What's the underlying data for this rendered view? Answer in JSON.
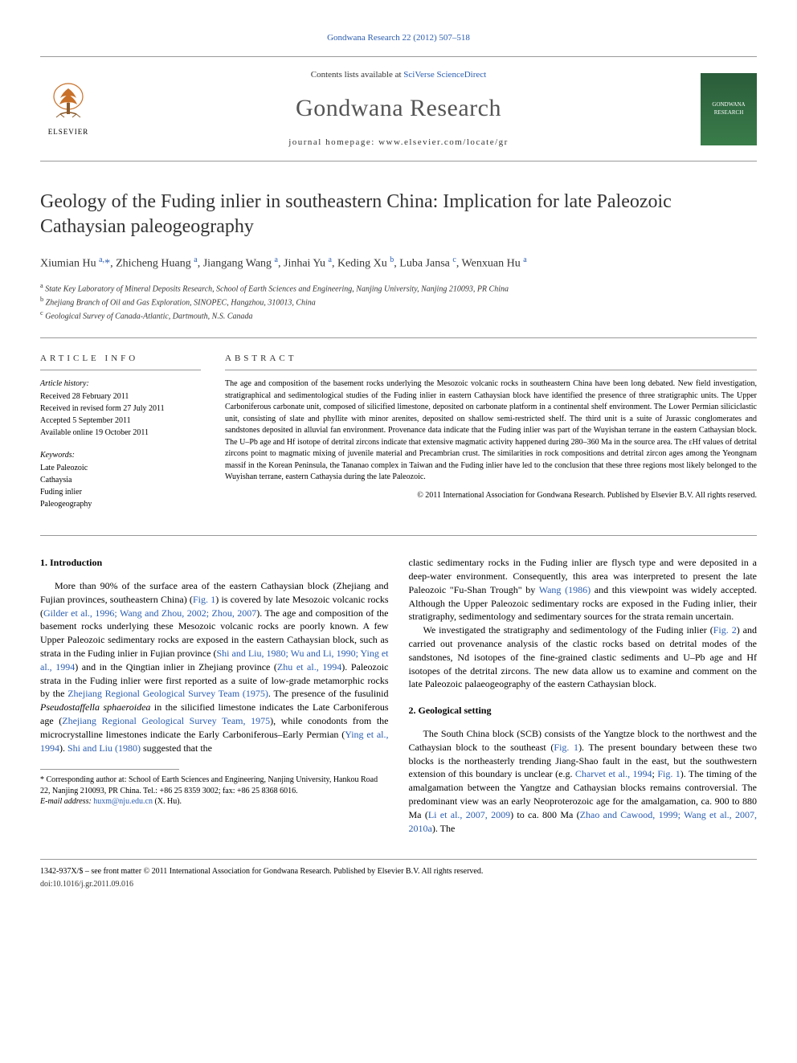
{
  "top_link": "Gondwana Research 22 (2012) 507–518",
  "journal_header": {
    "contents_prefix": "Contents lists available at ",
    "contents_link": "SciVerse ScienceDirect",
    "journal_name": "Gondwana Research",
    "homepage": "journal homepage: www.elsevier.com/locate/gr",
    "elsevier_label": "ELSEVIER",
    "cover_text": "GONDWANA RESEARCH"
  },
  "title": "Geology of the Fuding inlier in southeastern China: Implication for late Paleozoic Cathaysian paleogeography",
  "authors_html": "Xiumian Hu <sup>a,</sup><span class='star'>*</span>, Zhicheng Huang <sup>a</sup>, Jiangang Wang <sup>a</sup>, Jinhai Yu <sup>a</sup>, Keding Xu <sup>b</sup>, Luba Jansa <sup>c</sup>, Wenxuan Hu <sup>a</sup>",
  "affiliations": [
    {
      "sup": "a",
      "text": "State Key Laboratory of Mineral Deposits Research, School of Earth Sciences and Engineering, Nanjing University, Nanjing 210093, PR China"
    },
    {
      "sup": "b",
      "text": "Zhejiang Branch of Oil and Gas Exploration, SINOPEC, Hangzhou, 310013, China"
    },
    {
      "sup": "c",
      "text": "Geological Survey of Canada-Atlantic, Dartmouth, N.S. Canada"
    }
  ],
  "info": {
    "heading": "ARTICLE INFO",
    "history_label": "Article history:",
    "history": [
      "Received 28 February 2011",
      "Received in revised form 27 July 2011",
      "Accepted 5 September 2011",
      "Available online 19 October 2011"
    ],
    "keywords_label": "Keywords:",
    "keywords": [
      "Late Paleozoic",
      "Cathaysia",
      "Fuding inlier",
      "Paleogeography"
    ]
  },
  "abstract": {
    "heading": "ABSTRACT",
    "text": "The age and composition of the basement rocks underlying the Mesozoic volcanic rocks in southeastern China have been long debated. New field investigation, stratigraphical and sedimentological studies of the Fuding inlier in eastern Cathaysian block have identified the presence of three stratigraphic units. The Upper Carboniferous carbonate unit, composed of silicified limestone, deposited on carbonate platform in a continental shelf environment. The Lower Permian siliciclastic unit, consisting of slate and phyllite with minor arenites, deposited on shallow semi-restricted shelf. The third unit is a suite of Jurassic conglomerates and sandstones deposited in alluvial fan environment. Provenance data indicate that the Fuding inlier was part of the Wuyishan terrane in the eastern Cathaysian block. The U–Pb age and Hf isotope of detrital zircons indicate that extensive magmatic activity happened during 280–360 Ma in the source area. The εHf values of detrital zircons point to magmatic mixing of juvenile material and Precambrian crust. The similarities in rock compositions and detrital zircon ages among the Yeongnam massif in the Korean Peninsula, the Tananao complex in Taiwan and the Fuding inlier have led to the conclusion that these three regions most likely belonged to the Wuyishan terrane, eastern Cathaysia during the late Paleozoic.",
    "copyright": "© 2011 International Association for Gondwana Research. Published by Elsevier B.V. All rights reserved."
  },
  "body": {
    "col1": {
      "heading": "1. Introduction",
      "p1_html": "More than 90% of the surface area of the eastern Cathaysian block (Zhejiang and Fujian provinces, southeastern China) (<span class='fig-link'>Fig. 1</span>) is covered by late Mesozoic volcanic rocks (<span class='ref-link'>Gilder et al., 1996; Wang and Zhou, 2002; Zhou, 2007</span>). The age and composition of the basement rocks underlying these Mesozoic volcanic rocks are poorly known. A few Upper Paleozoic sedimentary rocks are exposed in the eastern Cathaysian block, such as strata in the Fuding inlier in Fujian province (<span class='ref-link'>Shi and Liu, 1980; Wu and Li, 1990; Ying et al., 1994</span>) and in the Qingtian inlier in Zhejiang province (<span class='ref-link'>Zhu et al., 1994</span>). Paleozoic strata in the Fuding inlier were first reported as a suite of low-grade metamorphic rocks by the <span class='ref-link'>Zhejiang Regional Geological Survey Team (1975)</span>. The presence of the fusulinid <span class='taxon'>Pseudostaffella sphaeroidea</span> in the silicified limestone indicates the Late Carboniferous age (<span class='ref-link'>Zhejiang Regional Geological Survey Team, 1975</span>), while conodonts from the microcrystalline limestones indicate the Early Carboniferous–Early Permian (<span class='ref-link'>Ying et al., 1994</span>). <span class='ref-link'>Shi and Liu (1980)</span> suggested that the"
    },
    "col2": {
      "p1_html": "clastic sedimentary rocks in the Fuding inlier are flysch type and were deposited in a deep-water environment. Consequently, this area was interpreted to present the late Paleozoic \"Fu-Shan Trough\" by <span class='ref-link'>Wang (1986)</span> and this viewpoint was widely accepted. Although the Upper Paleozoic sedimentary rocks are exposed in the Fuding inlier, their stratigraphy, sedimentology and sedimentary sources for the strata remain uncertain.",
      "p2_html": "We investigated the stratigraphy and sedimentology of the Fuding inlier (<span class='fig-link'>Fig. 2</span>) and carried out provenance analysis of the clastic rocks based on detrital modes of the sandstones, Nd isotopes of the fine-grained clastic sediments and U–Pb age and Hf isotopes of the detrital zircons. The new data allow us to examine and comment on the late Paleozoic palaeogeography of the eastern Cathaysian block.",
      "heading2": "2. Geological setting",
      "p3_html": "The South China block (SCB) consists of the Yangtze block to the northwest and the Cathaysian block to the southeast (<span class='fig-link'>Fig. 1</span>). The present boundary between these two blocks is the northeasterly trending Jiang-Shao fault in the east, but the southwestern extension of this boundary is unclear (e.g. <span class='ref-link'>Charvet et al., 1994</span>; <span class='fig-link'>Fig. 1</span>). The timing of the amalgamation between the Yangtze and Cathaysian blocks remains controversial. The predominant view was an early Neoproterozoic age for the amalgamation, ca. 900 to 880 Ma (<span class='ref-link'>Li et al., 2007, 2009</span>) to ca. 800 Ma (<span class='ref-link'>Zhao and Cawood, 1999; Wang et al., 2007, 2010a</span>). The"
    }
  },
  "footnotes": {
    "corresponding": "* Corresponding author at: School of Earth Sciences and Engineering, Nanjing University, Hankou Road 22, Nanjing 210093, PR China. Tel.: +86 25 8359 3002; fax: +86 25 8368 6016.",
    "email_label": "E-mail address:",
    "email": "huxm@nju.edu.cn",
    "email_suffix": "(X. Hu)."
  },
  "footer": {
    "line1": "1342-937X/$ – see front matter © 2011 International Association for Gondwana Research. Published by Elsevier B.V. All rights reserved.",
    "line2": "doi:10.1016/j.gr.2011.09.016"
  },
  "colors": {
    "link": "#2a5db0",
    "text": "#000000",
    "heading_gray": "#555555",
    "rule": "#999999"
  }
}
